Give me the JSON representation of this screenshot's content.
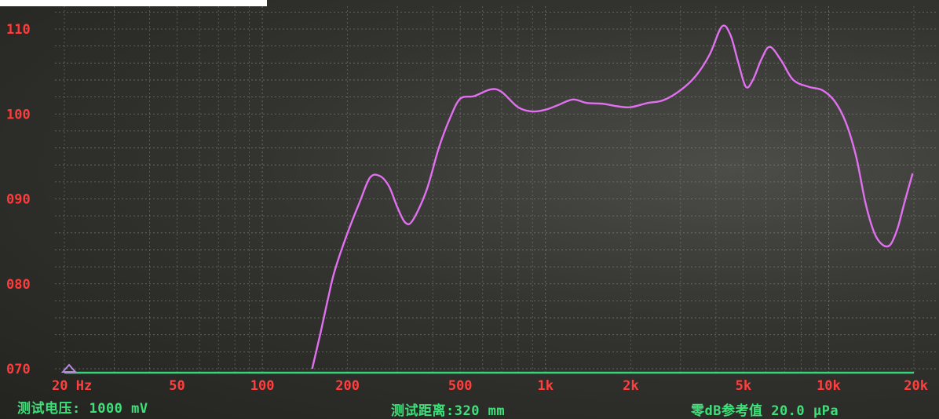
{
  "chart_data": {
    "type": "line",
    "x_scale": "log",
    "xlim": [
      20,
      20000
    ],
    "ylim": [
      70,
      112
    ],
    "y_ticks": [
      110,
      100,
      90,
      80,
      70
    ],
    "y_tick_labels": [
      "110",
      "100",
      "090",
      "080",
      "070"
    ],
    "x_ticks": [
      20,
      50,
      100,
      200,
      500,
      1000,
      2000,
      5000,
      10000,
      20000
    ],
    "x_tick_labels": [
      "20 Hz",
      "50",
      "100",
      "200",
      "500",
      "1k",
      "2k",
      "5k",
      "10k",
      "20k"
    ],
    "grid": true,
    "series": [
      {
        "color": "#e070f0",
        "points": [
          [
            150,
            70
          ],
          [
            160,
            74
          ],
          [
            170,
            78
          ],
          [
            180,
            81.5
          ],
          [
            200,
            86
          ],
          [
            220,
            89.5
          ],
          [
            240,
            92.5
          ],
          [
            260,
            92.7
          ],
          [
            280,
            91.5
          ],
          [
            300,
            89
          ],
          [
            320,
            87.2
          ],
          [
            340,
            87.5
          ],
          [
            380,
            91
          ],
          [
            420,
            96
          ],
          [
            460,
            99.5
          ],
          [
            500,
            101.8
          ],
          [
            560,
            102.1
          ],
          [
            640,
            102.9
          ],
          [
            700,
            102.6
          ],
          [
            800,
            100.8
          ],
          [
            900,
            100.3
          ],
          [
            1000,
            100.5
          ],
          [
            1100,
            101
          ],
          [
            1250,
            101.7
          ],
          [
            1400,
            101.3
          ],
          [
            1600,
            101.2
          ],
          [
            1800,
            100.9
          ],
          [
            2000,
            100.8
          ],
          [
            2300,
            101.3
          ],
          [
            2600,
            101.6
          ],
          [
            3000,
            102.8
          ],
          [
            3400,
            104.5
          ],
          [
            3800,
            107
          ],
          [
            4200,
            110.3
          ],
          [
            4500,
            109.3
          ],
          [
            4800,
            106
          ],
          [
            5100,
            103.2
          ],
          [
            5400,
            104
          ],
          [
            5800,
            106.5
          ],
          [
            6200,
            107.9
          ],
          [
            6800,
            106.3
          ],
          [
            7500,
            104
          ],
          [
            8500,
            103.2
          ],
          [
            9500,
            102.8
          ],
          [
            10500,
            101.5
          ],
          [
            11500,
            99
          ],
          [
            12500,
            95
          ],
          [
            13500,
            89.5
          ],
          [
            14500,
            86
          ],
          [
            15500,
            84.6
          ],
          [
            16500,
            84.6
          ],
          [
            17500,
            86.5
          ],
          [
            18500,
            89.5
          ],
          [
            19800,
            93
          ]
        ]
      },
      {
        "color": "#36d37a",
        "points": [
          [
            20,
            70
          ],
          [
            20000,
            70
          ]
        ]
      }
    ]
  },
  "status_bar": {
    "voltage": "测试电压: 1000 mV",
    "distance": "测试距离:320 mm",
    "reference": "零dB参考值 20.0 µPa"
  },
  "colors": {
    "background": "#2e2e2a",
    "trace": "#e070f0",
    "baseline": "#36d37a",
    "tick_labels": "#ff3b3b",
    "status_text": "#3ee07a"
  }
}
